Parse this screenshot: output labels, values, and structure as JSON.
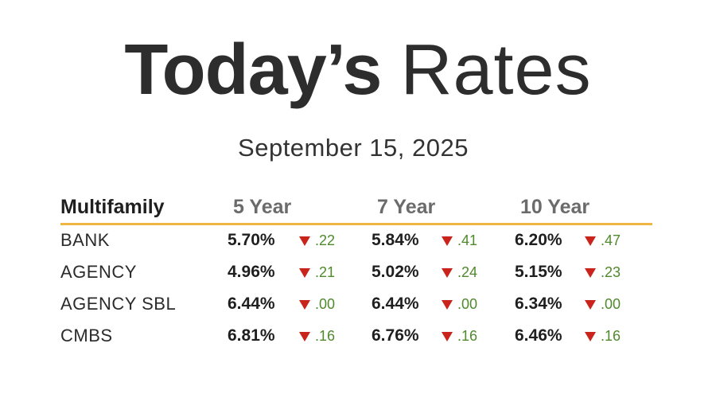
{
  "title": {
    "bold": "Today’s",
    "light": "Rates"
  },
  "date": "September 15, 2025",
  "table": {
    "headers": [
      "Multifamily",
      "5 Year",
      "7 Year",
      "10 Year"
    ],
    "rows": [
      {
        "label": "BANK",
        "cells": [
          {
            "rate": "5.70%",
            "change": ".22"
          },
          {
            "rate": "5.84%",
            "change": ".41"
          },
          {
            "rate": "6.20%",
            "change": ".47"
          }
        ]
      },
      {
        "label": "AGENCY",
        "cells": [
          {
            "rate": "4.96%",
            "change": ".21"
          },
          {
            "rate": "5.02%",
            "change": ".24"
          },
          {
            "rate": "5.15%",
            "change": ".23"
          }
        ]
      },
      {
        "label": "AGENCY SBL",
        "cells": [
          {
            "rate": "6.44%",
            "change": ".00"
          },
          {
            "rate": "6.44%",
            "change": ".00"
          },
          {
            "rate": "6.34%",
            "change": ".00"
          }
        ]
      },
      {
        "label": "CMBS",
        "cells": [
          {
            "rate": "6.81%",
            "change": ".16"
          },
          {
            "rate": "6.76%",
            "change": ".16"
          },
          {
            "rate": "6.46%",
            "change": ".16"
          }
        ]
      }
    ]
  },
  "colors": {
    "divider": "#f0b542",
    "down_arrow": "#c8241c",
    "change_text": "#4f8a2b"
  },
  "icons": {
    "change_indicator": "down-triangle-icon"
  }
}
